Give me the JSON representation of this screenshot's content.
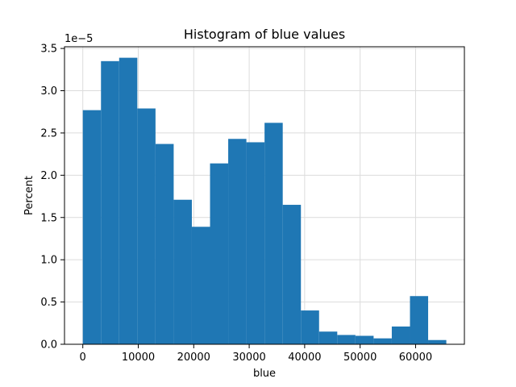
{
  "chart_data": {
    "type": "bar",
    "title": "Histogram of blue values",
    "xlabel": "blue",
    "ylabel": "Percent",
    "y_offset_label": "1e−5",
    "y_scale": 1e-05,
    "grid": true,
    "bar_color": "#1f77b4",
    "grid_color": "#dcdcdc",
    "xlim": [
      -3300,
      68800
    ],
    "ylim": [
      0,
      3.52
    ],
    "x_ticks": [
      0,
      10000,
      20000,
      30000,
      40000,
      50000,
      60000
    ],
    "x_tick_labels": [
      "0",
      "10000",
      "20000",
      "30000",
      "40000",
      "50000",
      "60000"
    ],
    "y_ticks": [
      0,
      0.5,
      1.0,
      1.5,
      2.0,
      2.5,
      3.0,
      3.5
    ],
    "y_tick_labels": [
      "0.0",
      "0.5",
      "1.0",
      "1.5",
      "2.0",
      "2.5",
      "3.0",
      "3.5"
    ],
    "bin_edges": [
      0,
      3277,
      6554,
      9831,
      13108,
      16385,
      19662,
      22939,
      26216,
      29493,
      32770,
      36047,
      39324,
      42601,
      45878,
      49155,
      52432,
      55709,
      58986,
      62263,
      65540
    ],
    "values": [
      2.77,
      3.35,
      3.39,
      2.79,
      2.37,
      1.71,
      1.39,
      2.14,
      2.43,
      2.39,
      2.62,
      1.65,
      0.4,
      0.15,
      0.11,
      0.1,
      0.07,
      0.21,
      0.57,
      0.05
    ]
  }
}
